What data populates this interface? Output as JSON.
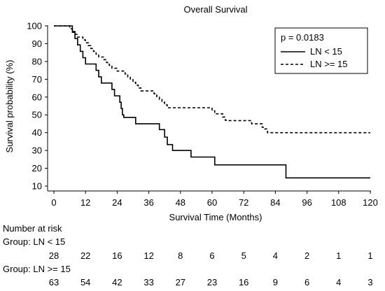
{
  "chart_data": {
    "type": "line",
    "subtype": "kaplan-meier step",
    "title": "Overall Survival",
    "xlabel": "Survival Time (Months)",
    "ylabel": "Survival probability (%)",
    "xlim": [
      0,
      120
    ],
    "ylim": [
      8,
      101
    ],
    "xticks": [
      0,
      12,
      24,
      36,
      48,
      60,
      72,
      84,
      96,
      108,
      120
    ],
    "yticks": [
      10,
      20,
      30,
      40,
      50,
      60,
      70,
      80,
      90,
      100
    ],
    "grid": false,
    "legend_placement": "top-right",
    "annotation": "p = 0.0183",
    "series": [
      {
        "name": "LN < 15",
        "style": "solid",
        "points": [
          [
            0,
            100
          ],
          [
            6,
            100
          ],
          [
            7,
            96.4
          ],
          [
            8,
            92.9
          ],
          [
            9,
            89.3
          ],
          [
            10,
            85.7
          ],
          [
            11,
            82.1
          ],
          [
            12,
            78.6
          ],
          [
            16,
            75
          ],
          [
            17,
            71.4
          ],
          [
            18,
            67.9
          ],
          [
            22,
            64.3
          ],
          [
            23,
            60.7
          ],
          [
            25,
            57.1
          ],
          [
            25.5,
            53.6
          ],
          [
            26,
            50
          ],
          [
            26.5,
            48.6
          ],
          [
            31,
            45
          ],
          [
            40,
            41.7
          ],
          [
            42,
            37.5
          ],
          [
            43,
            33.3
          ],
          [
            45,
            30
          ],
          [
            52,
            26.3
          ],
          [
            61,
            21.9
          ],
          [
            88,
            14.6
          ],
          [
            120,
            14.6
          ]
        ]
      },
      {
        "name": "LN >= 15",
        "style": "dashed",
        "points": [
          [
            0,
            100
          ],
          [
            5,
            100
          ],
          [
            6,
            98.4
          ],
          [
            7,
            96.8
          ],
          [
            8,
            95.2
          ],
          [
            9,
            93.7
          ],
          [
            11,
            92.1
          ],
          [
            12,
            90.5
          ],
          [
            13,
            88.9
          ],
          [
            14,
            87.3
          ],
          [
            15,
            85.7
          ],
          [
            16,
            84.1
          ],
          [
            17,
            82.5
          ],
          [
            19,
            81
          ],
          [
            20,
            79.4
          ],
          [
            21,
            77.8
          ],
          [
            22,
            76.2
          ],
          [
            24,
            74.6
          ],
          [
            27,
            73
          ],
          [
            28,
            71.4
          ],
          [
            29,
            69.8
          ],
          [
            30,
            68.3
          ],
          [
            31,
            66.7
          ],
          [
            32,
            65.1
          ],
          [
            33,
            63.5
          ],
          [
            38,
            61.9
          ],
          [
            39,
            60.3
          ],
          [
            40,
            58.7
          ],
          [
            41,
            57.1
          ],
          [
            42,
            55.6
          ],
          [
            43,
            54
          ],
          [
            60,
            52.3
          ],
          [
            61,
            50.6
          ],
          [
            64,
            48.8
          ],
          [
            65,
            47
          ],
          [
            66,
            46.8
          ],
          [
            75,
            45
          ],
          [
            79,
            43
          ],
          [
            80,
            42.1
          ],
          [
            81,
            40
          ],
          [
            120,
            40
          ]
        ]
      }
    ],
    "risk_table": {
      "header": "Number at risk",
      "groups": [
        {
          "label": "Group: LN < 15",
          "counts": [
            "28",
            "22",
            "16",
            "12",
            "8",
            "6",
            "5",
            "4",
            "2",
            "1",
            "1"
          ]
        },
        {
          "label": "Group: LN >= 15",
          "counts": [
            "63",
            "54",
            "42",
            "33",
            "27",
            "23",
            "16",
            "9",
            "6",
            "4",
            "3"
          ]
        }
      ]
    }
  }
}
